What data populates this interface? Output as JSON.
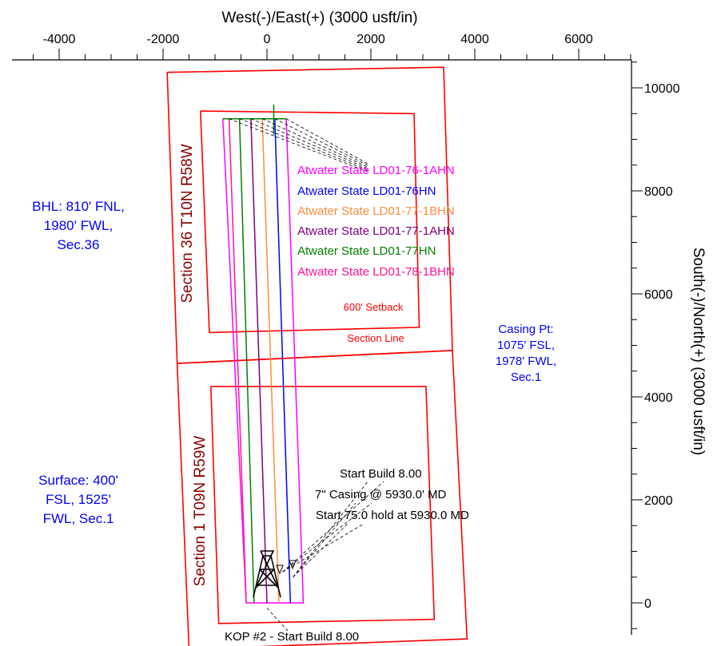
{
  "chart_data": {
    "type": "line",
    "title": "",
    "xlabel": "West(-)/East(+) (3000 usft/in)",
    "ylabel": "South(-)/North(+) (3000 usft/in)",
    "xlim": [
      -5000,
      7000
    ],
    "ylim": [
      -600,
      10700
    ],
    "x_ticks": [
      -4000,
      -2000,
      0,
      2000,
      4000,
      6000
    ],
    "x_tick_labels": [
      "-4000",
      "-2000",
      "0",
      "2000",
      "4000",
      "6000"
    ],
    "y_ticks": [
      0,
      2000,
      4000,
      6000,
      8000,
      10000
    ],
    "y_tick_labels": [
      "0",
      "2000",
      "4000",
      "6000",
      "8000",
      "10000"
    ],
    "grid": false,
    "series": [
      {
        "name": "Atwater State LD01-76-1AHN",
        "color": "#ff00ff",
        "points": [
          [
            -850,
            9400
          ],
          [
            -400,
            0
          ],
          [
            700,
            0
          ],
          [
            370,
            9400
          ]
        ]
      },
      {
        "name": "Atwater State LD01-76HN",
        "color": "#0000ff",
        "points": [
          [
            150,
            9400
          ],
          [
            450,
            0
          ]
        ]
      },
      {
        "name": "Atwater State LD01-77-1BHN",
        "color": "#ff8c3c",
        "points": [
          [
            -90,
            9400
          ],
          [
            230,
            0
          ]
        ]
      },
      {
        "name": "Atwater State LD01-77-1AHN",
        "color": "#800080",
        "points": [
          [
            -310,
            9400
          ],
          [
            0,
            0
          ]
        ]
      },
      {
        "name": "Atwater State LD01-77HN",
        "color": "#008000",
        "points": [
          [
            -530,
            9400
          ],
          [
            -250,
            0
          ]
        ]
      },
      {
        "name": "Atwater State LD01-78-1BHN",
        "color": "#ff1493",
        "points": [
          [
            -730,
            9400
          ],
          [
            -400,
            0
          ]
        ]
      }
    ],
    "boundaries": [
      {
        "name": "Section 36 boundary",
        "color": "#ff0000",
        "points": [
          [
            -1920,
            10300
          ],
          [
            3400,
            10400
          ],
          [
            3570,
            4900
          ],
          [
            -1730,
            4650
          ],
          [
            -1920,
            10300
          ]
        ]
      },
      {
        "name": "Section 1 boundary",
        "color": "#ff0000",
        "points": [
          [
            -1730,
            4650
          ],
          [
            3570,
            4900
          ],
          [
            3850,
            -700
          ],
          [
            -1500,
            -900
          ],
          [
            -1730,
            4650
          ]
        ]
      },
      {
        "name": "Section 36 setback",
        "color": "#ff0000",
        "points": [
          [
            -1280,
            9550
          ],
          [
            2830,
            9500
          ],
          [
            2930,
            5350
          ],
          [
            -1110,
            5250
          ],
          [
            -1280,
            9550
          ]
        ]
      },
      {
        "name": "Section 1 setback",
        "color": "#ff0000",
        "points": [
          [
            -1080,
            4200
          ],
          [
            3060,
            4200
          ],
          [
            3220,
            -320
          ],
          [
            -930,
            -400
          ],
          [
            -1080,
            4200
          ]
        ]
      }
    ],
    "top_marker": {
      "x": 130,
      "y": 9400,
      "color": "#008000"
    },
    "annotations": {
      "well_labels": [
        {
          "text": "Atwater State LD01-76-1AHN",
          "color": "#ff00ff"
        },
        {
          "text": "Atwater State LD01-76HN",
          "color": "#0000ff"
        },
        {
          "text": "Atwater State LD01-77-1BHN",
          "color": "#ff8c3c"
        },
        {
          "text": "Atwater State LD01-77-1AHN",
          "color": "#800080"
        },
        {
          "text": "Atwater State LD01-77HN",
          "color": "#008000"
        },
        {
          "text": "Atwater State LD01-78-1BHN",
          "color": "#ff1493"
        }
      ],
      "section36": "Section 36 T10N R58W",
      "section1": "Section 1 T09N R59W",
      "setback": "600' Setback",
      "section_line": "Section Line",
      "bhl": [
        "BHL: 810' FNL,",
        "1980' FWL,",
        "Sec.36"
      ],
      "casing_pt": [
        "Casing Pt:",
        "1075' FSL,",
        "1978' FWL,",
        "Sec.1"
      ],
      "surface": [
        "Surface: 400'",
        "FSL, 1525'",
        "FWL, Sec.1"
      ],
      "start_build": "Start Build 8.00",
      "casing": "7\" Casing @ 5930.0' MD",
      "start_hold": "Start 75.0 hold at 5930.0 MD",
      "kop": "KOP #2 - Start Build 8.00"
    },
    "colors": {
      "section": "#ff0000",
      "section_text": "#8b0000",
      "callout": "#0000ff"
    }
  }
}
